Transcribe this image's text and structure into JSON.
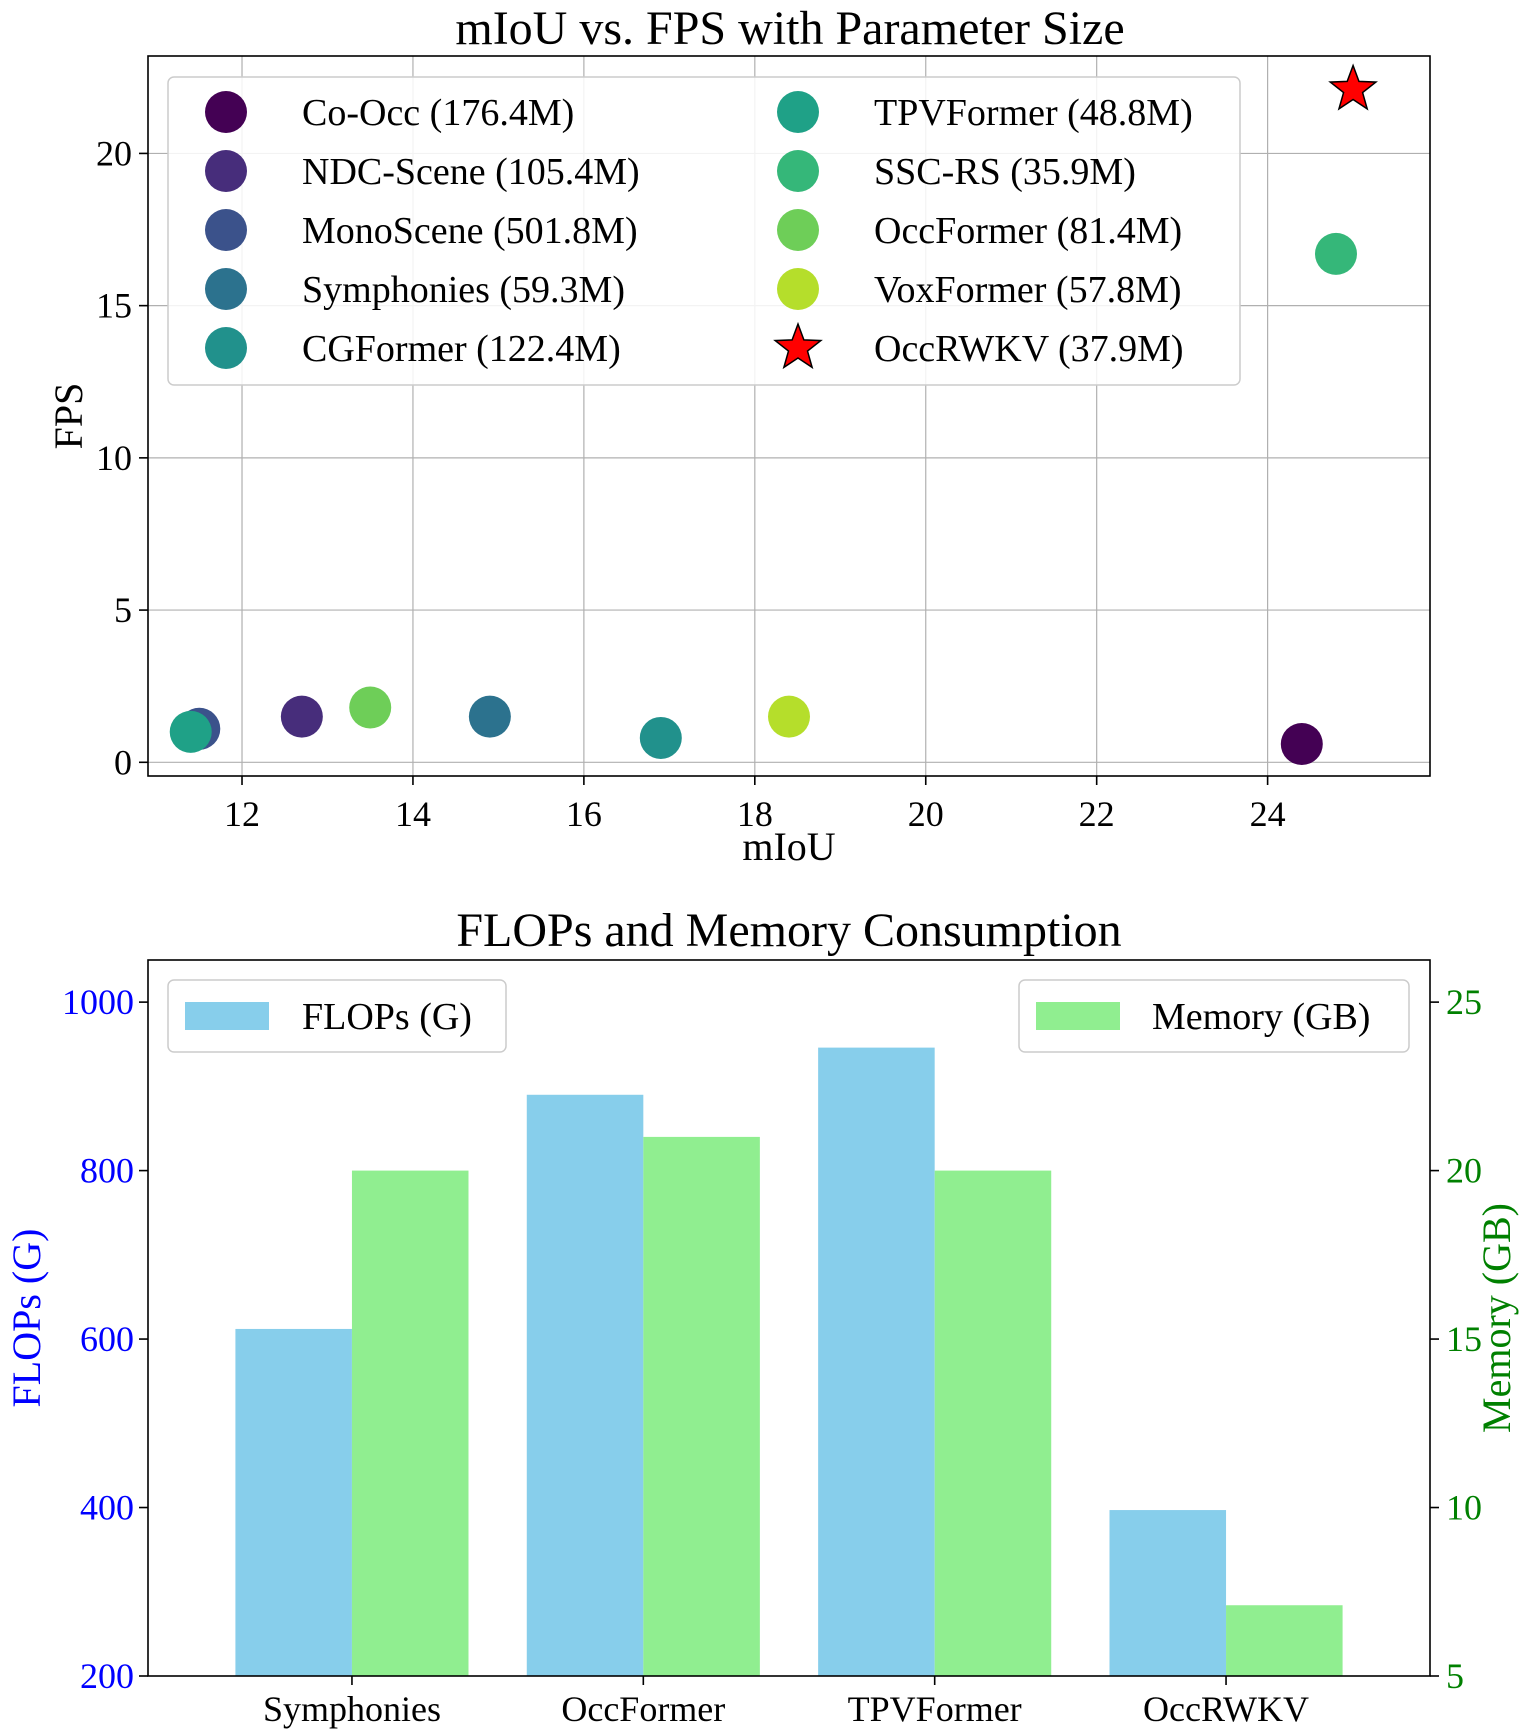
{
  "chart_data": [
    {
      "type": "scatter",
      "title": "mIoU vs. FPS with Parameter Size",
      "xlabel": "mIoU",
      "ylabel": "FPS",
      "xlim": [
        10.9,
        25.9
      ],
      "ylim": [
        -0.45,
        23.2
      ],
      "xticks": [
        12,
        14,
        16,
        18,
        20,
        22,
        24
      ],
      "yticks": [
        0,
        5,
        10,
        15,
        20
      ],
      "grid": true,
      "legend_placement": "upper-left, 2 columns",
      "points": [
        {
          "label": "Co-Occ (176.4M)",
          "x": 24.4,
          "y": 0.6,
          "color": "#440154",
          "marker": "circle"
        },
        {
          "label": "NDC-Scene (105.4M)",
          "x": 12.7,
          "y": 1.5,
          "color": "#472d7b",
          "marker": "circle"
        },
        {
          "label": "MonoScene (501.8M)",
          "x": 11.5,
          "y": 1.1,
          "color": "#3b528b",
          "marker": "circle"
        },
        {
          "label": "Symphonies (59.3M)",
          "x": 14.9,
          "y": 1.5,
          "color": "#2c728e",
          "marker": "circle"
        },
        {
          "label": "CGFormer (122.4M)",
          "x": 16.9,
          "y": 0.8,
          "color": "#21918c",
          "marker": "circle"
        },
        {
          "label": "TPVFormer (48.8M)",
          "x": 11.4,
          "y": 1.0,
          "color": "#1fa187",
          "marker": "circle"
        },
        {
          "label": "SSC-RS (35.9M)",
          "x": 24.8,
          "y": 16.7,
          "color": "#35b779",
          "marker": "circle"
        },
        {
          "label": "OccFormer (81.4M)",
          "x": 13.5,
          "y": 1.8,
          "color": "#6ece58",
          "marker": "circle"
        },
        {
          "label": "VoxFormer (57.8M)",
          "x": 18.4,
          "y": 1.5,
          "color": "#b5de2b",
          "marker": "circle"
        },
        {
          "label": "OccRWKV (37.9M)",
          "x": 25.0,
          "y": 22.1,
          "color": "#ff0000",
          "marker": "star"
        }
      ]
    },
    {
      "type": "bar",
      "title": "FLOPs and Memory Consumption",
      "categories": [
        "Symphonies",
        "OccFormer",
        "TPVFormer",
        "OccRWKV"
      ],
      "series": [
        {
          "name": "FLOPs (G)",
          "axis": "left",
          "color": "#87ceeb",
          "values": [
            612,
            890,
            946,
            397
          ]
        },
        {
          "name": "Memory (GB)",
          "axis": "right",
          "color": "#90ee90",
          "values": [
            20,
            21,
            20,
            7.1
          ]
        }
      ],
      "ylabel_left": "FLOPs (G)",
      "ylabel_right": "Memory (GB)",
      "ylabel_left_color": "#0000ff",
      "ylabel_right_color": "#008000",
      "ylim_left": [
        200,
        1050
      ],
      "ylim_right": [
        5,
        26.25
      ],
      "yticks_left": [
        200,
        400,
        600,
        800,
        1000
      ],
      "yticks_right": [
        5,
        10,
        15,
        20,
        25
      ],
      "legend_left_placement": "upper-left",
      "legend_right_placement": "upper-right"
    }
  ]
}
